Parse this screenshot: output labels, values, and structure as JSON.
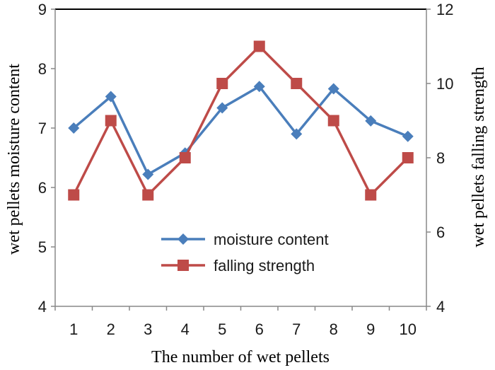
{
  "chart_data": {
    "type": "line",
    "title": "",
    "xlabel": "The number of wet pellets",
    "ylabel_left": "wet pellets moisture content",
    "ylabel_right": "wet pellets falling strength",
    "categories": [
      "1",
      "2",
      "3",
      "4",
      "5",
      "6",
      "7",
      "8",
      "9",
      "10"
    ],
    "ylim_left": [
      4,
      9
    ],
    "yticks_left": [
      4,
      5,
      6,
      7,
      8,
      9
    ],
    "ylim_right": [
      4,
      12
    ],
    "yticks_right": [
      4,
      6,
      8,
      10,
      12
    ],
    "legend_position": "bottom-center",
    "series": [
      {
        "name": "moisture content",
        "axis": "left",
        "marker": "diamond",
        "color": "#4a7ebb",
        "values": [
          7.0,
          7.53,
          6.22,
          6.58,
          7.34,
          7.7,
          6.9,
          7.66,
          7.12,
          6.86
        ]
      },
      {
        "name": "falling strength",
        "axis": "right",
        "marker": "square",
        "color": "#be4b48",
        "values": [
          7,
          9,
          7,
          8,
          10,
          11,
          10,
          9,
          7,
          8
        ]
      }
    ]
  }
}
